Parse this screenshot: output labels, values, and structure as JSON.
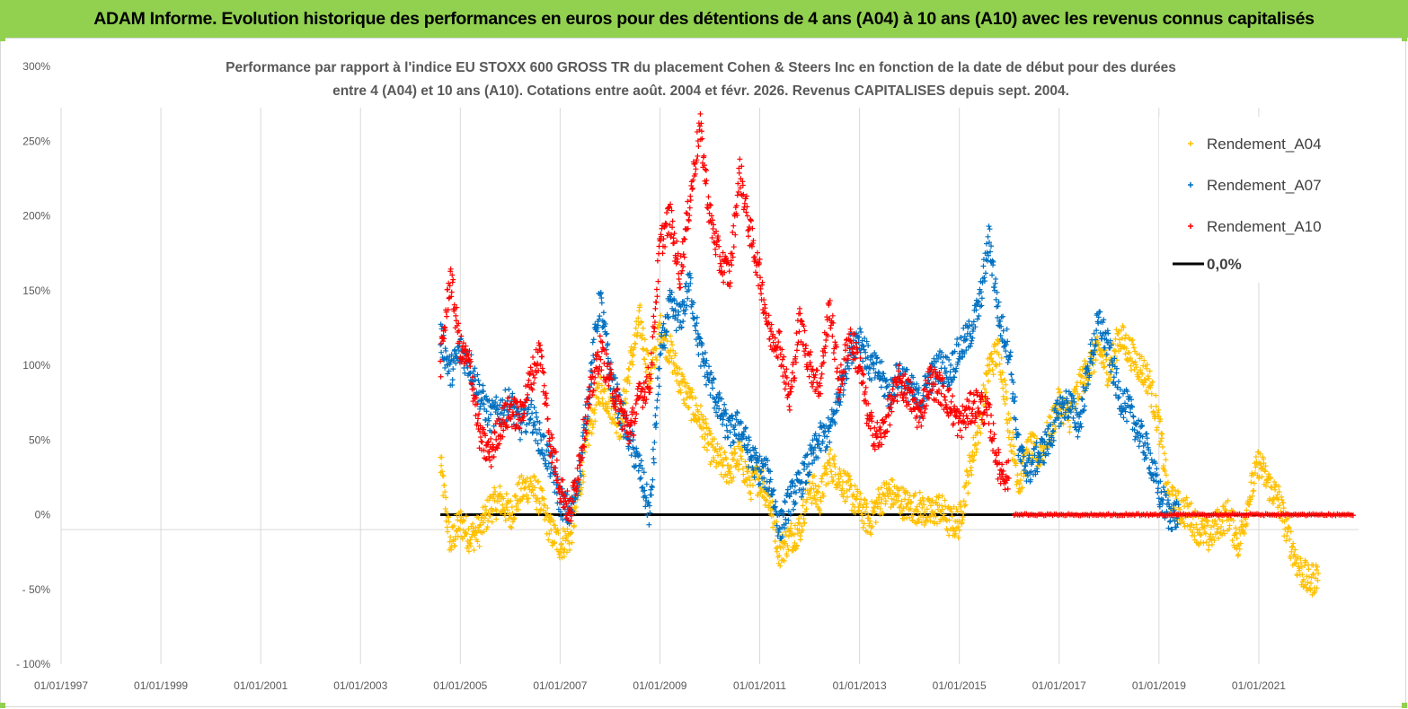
{
  "header": {
    "title": "ADAM Informe. Evolution historique des performances en euros pour des détentions de 4 ans (A04) à 10 ans (A10) avec les revenus connus capitalisés"
  },
  "chart_data": {
    "type": "scatter",
    "title_line1": "Performance par rapport à l'indice EU STOXX 600 GROSS TR  du placement Cohen & Steers Inc en fonction de la date de début pour des durées",
    "title_line2": "entre 4 (A04) et 10 ans (A10). Cotations entre août. 2004 et févr. 2026. Revenus CAPITALISES depuis sept. 2004.",
    "xlabel": "",
    "ylabel": "",
    "ylim": [
      -100,
      300
    ],
    "xlim": [
      "1997-01-01",
      "2022-12-31"
    ],
    "grid": "vertical gridlines at each x tick",
    "legend_position": "top-right",
    "y_ticks": [
      "300%",
      "250%",
      "200%",
      "150%",
      "100%",
      "50%",
      "0%",
      "- 50%",
      "- 100%"
    ],
    "x_ticks": [
      "01/01/1997",
      "01/01/1999",
      "01/01/2001",
      "01/01/2003",
      "01/01/2005",
      "01/01/2007",
      "01/01/2009",
      "01/01/2011",
      "01/01/2013",
      "01/01/2015",
      "01/01/2017",
      "01/01/2019",
      "01/01/2021"
    ],
    "series": [
      {
        "name": "Rendement_A04",
        "color": "#ffc000",
        "marker": "plus",
        "points": [
          [
            2004.6,
            35
          ],
          [
            2004.8,
            -20
          ],
          [
            2005.0,
            -5
          ],
          [
            2005.2,
            -15
          ],
          [
            2005.4,
            -10
          ],
          [
            2005.6,
            5
          ],
          [
            2005.8,
            10
          ],
          [
            2006.0,
            0
          ],
          [
            2006.2,
            15
          ],
          [
            2006.4,
            20
          ],
          [
            2006.6,
            10
          ],
          [
            2006.8,
            -10
          ],
          [
            2007.0,
            -20
          ],
          [
            2007.2,
            -15
          ],
          [
            2007.4,
            20
          ],
          [
            2007.6,
            60
          ],
          [
            2007.8,
            85
          ],
          [
            2008.0,
            75
          ],
          [
            2008.2,
            60
          ],
          [
            2008.4,
            100
          ],
          [
            2008.6,
            130
          ],
          [
            2008.8,
            90
          ],
          [
            2009.0,
            125
          ],
          [
            2009.2,
            110
          ],
          [
            2009.4,
            90
          ],
          [
            2009.6,
            75
          ],
          [
            2009.8,
            65
          ],
          [
            2010.0,
            45
          ],
          [
            2010.2,
            35
          ],
          [
            2010.4,
            30
          ],
          [
            2010.6,
            40
          ],
          [
            2010.8,
            20
          ],
          [
            2011.0,
            25
          ],
          [
            2011.2,
            10
          ],
          [
            2011.4,
            -25
          ],
          [
            2011.6,
            -15
          ],
          [
            2011.8,
            -10
          ],
          [
            2012.0,
            20
          ],
          [
            2012.2,
            10
          ],
          [
            2012.4,
            35
          ],
          [
            2012.6,
            25
          ],
          [
            2012.8,
            15
          ],
          [
            2013.0,
            5
          ],
          [
            2013.2,
            -5
          ],
          [
            2013.4,
            10
          ],
          [
            2013.6,
            15
          ],
          [
            2013.8,
            10
          ],
          [
            2014.0,
            5
          ],
          [
            2014.2,
            5
          ],
          [
            2014.4,
            0
          ],
          [
            2014.6,
            5
          ],
          [
            2014.8,
            -5
          ],
          [
            2015.0,
            -5
          ],
          [
            2015.2,
            30
          ],
          [
            2015.4,
            60
          ],
          [
            2015.6,
            100
          ],
          [
            2015.8,
            110
          ],
          [
            2016.0,
            60
          ],
          [
            2016.2,
            20
          ],
          [
            2016.4,
            45
          ],
          [
            2016.6,
            40
          ],
          [
            2016.8,
            55
          ],
          [
            2017.0,
            75
          ],
          [
            2017.2,
            65
          ],
          [
            2017.4,
            85
          ],
          [
            2017.6,
            100
          ],
          [
            2017.8,
            110
          ],
          [
            2018.0,
            95
          ],
          [
            2018.2,
            120
          ],
          [
            2018.4,
            110
          ],
          [
            2018.6,
            100
          ],
          [
            2018.8,
            90
          ],
          [
            2019.0,
            60
          ],
          [
            2019.2,
            10
          ],
          [
            2019.4,
            5
          ],
          [
            2019.6,
            0
          ],
          [
            2019.8,
            -10
          ],
          [
            2020.0,
            -15
          ],
          [
            2020.2,
            -5
          ],
          [
            2020.4,
            0
          ],
          [
            2020.6,
            -20
          ],
          [
            2020.8,
            10
          ],
          [
            2021.0,
            35
          ],
          [
            2021.2,
            20
          ],
          [
            2021.4,
            10
          ],
          [
            2021.6,
            -15
          ],
          [
            2021.8,
            -35
          ],
          [
            2022.0,
            -45
          ],
          [
            2022.2,
            -40
          ]
        ]
      },
      {
        "name": "Rendement_A07",
        "color": "#0070c0",
        "marker": "plus",
        "points": [
          [
            2004.6,
            120
          ],
          [
            2004.8,
            95
          ],
          [
            2005.0,
            110
          ],
          [
            2005.2,
            100
          ],
          [
            2005.4,
            80
          ],
          [
            2005.6,
            65
          ],
          [
            2005.8,
            70
          ],
          [
            2006.0,
            75
          ],
          [
            2006.2,
            60
          ],
          [
            2006.4,
            70
          ],
          [
            2006.6,
            50
          ],
          [
            2006.8,
            35
          ],
          [
            2007.0,
            10
          ],
          [
            2007.2,
            0
          ],
          [
            2007.4,
            30
          ],
          [
            2007.6,
            90
          ],
          [
            2007.8,
            145
          ],
          [
            2008.0,
            95
          ],
          [
            2008.2,
            70
          ],
          [
            2008.4,
            50
          ],
          [
            2008.6,
            30
          ],
          [
            2008.8,
            0
          ],
          [
            2009.0,
            105
          ],
          [
            2009.2,
            140
          ],
          [
            2009.4,
            130
          ],
          [
            2009.6,
            155
          ],
          [
            2009.8,
            110
          ],
          [
            2010.0,
            90
          ],
          [
            2010.2,
            70
          ],
          [
            2010.4,
            55
          ],
          [
            2010.6,
            60
          ],
          [
            2010.8,
            40
          ],
          [
            2011.0,
            30
          ],
          [
            2011.2,
            25
          ],
          [
            2011.4,
            -10
          ],
          [
            2011.6,
            10
          ],
          [
            2011.8,
            20
          ],
          [
            2012.0,
            35
          ],
          [
            2012.2,
            50
          ],
          [
            2012.4,
            55
          ],
          [
            2012.6,
            80
          ],
          [
            2012.8,
            110
          ],
          [
            2013.0,
            120
          ],
          [
            2013.2,
            100
          ],
          [
            2013.4,
            95
          ],
          [
            2013.6,
            80
          ],
          [
            2013.8,
            95
          ],
          [
            2014.0,
            85
          ],
          [
            2014.2,
            75
          ],
          [
            2014.4,
            90
          ],
          [
            2014.6,
            100
          ],
          [
            2014.8,
            95
          ],
          [
            2015.0,
            110
          ],
          [
            2015.2,
            120
          ],
          [
            2015.4,
            140
          ],
          [
            2015.6,
            185
          ],
          [
            2015.8,
            130
          ],
          [
            2016.0,
            110
          ],
          [
            2016.2,
            40
          ],
          [
            2016.4,
            30
          ],
          [
            2016.6,
            40
          ],
          [
            2016.8,
            50
          ],
          [
            2017.0,
            70
          ],
          [
            2017.2,
            75
          ],
          [
            2017.4,
            60
          ],
          [
            2017.6,
            100
          ],
          [
            2017.8,
            130
          ],
          [
            2018.0,
            110
          ],
          [
            2018.2,
            80
          ],
          [
            2018.4,
            70
          ],
          [
            2018.6,
            55
          ],
          [
            2018.8,
            40
          ],
          [
            2019.0,
            15
          ],
          [
            2019.2,
            0
          ],
          [
            2019.4,
            0
          ]
        ]
      },
      {
        "name": "Rendement_A10",
        "color": "#ff0000",
        "marker": "plus",
        "points": [
          [
            2004.6,
            100
          ],
          [
            2004.8,
            160
          ],
          [
            2005.0,
            110
          ],
          [
            2005.2,
            100
          ],
          [
            2005.4,
            50
          ],
          [
            2005.6,
            40
          ],
          [
            2005.8,
            60
          ],
          [
            2006.0,
            70
          ],
          [
            2006.2,
            65
          ],
          [
            2006.4,
            90
          ],
          [
            2006.6,
            110
          ],
          [
            2006.8,
            50
          ],
          [
            2007.0,
            20
          ],
          [
            2007.2,
            0
          ],
          [
            2007.4,
            40
          ],
          [
            2007.6,
            80
          ],
          [
            2007.8,
            110
          ],
          [
            2008.0,
            90
          ],
          [
            2008.2,
            70
          ],
          [
            2008.4,
            55
          ],
          [
            2008.6,
            80
          ],
          [
            2008.8,
            90
          ],
          [
            2009.0,
            180
          ],
          [
            2009.2,
            200
          ],
          [
            2009.4,
            160
          ],
          [
            2009.6,
            210
          ],
          [
            2009.8,
            260
          ],
          [
            2010.0,
            200
          ],
          [
            2010.2,
            170
          ],
          [
            2010.4,
            160
          ],
          [
            2010.6,
            230
          ],
          [
            2010.8,
            190
          ],
          [
            2011.0,
            160
          ],
          [
            2011.2,
            120
          ],
          [
            2011.4,
            115
          ],
          [
            2011.6,
            75
          ],
          [
            2011.8,
            130
          ],
          [
            2012.0,
            100
          ],
          [
            2012.2,
            85
          ],
          [
            2012.4,
            140
          ],
          [
            2012.6,
            85
          ],
          [
            2012.8,
            120
          ],
          [
            2013.0,
            100
          ],
          [
            2013.2,
            60
          ],
          [
            2013.4,
            50
          ],
          [
            2013.6,
            70
          ],
          [
            2013.8,
            90
          ],
          [
            2014.0,
            80
          ],
          [
            2014.2,
            65
          ],
          [
            2014.4,
            90
          ],
          [
            2014.6,
            85
          ],
          [
            2014.8,
            75
          ],
          [
            2015.0,
            60
          ],
          [
            2015.2,
            70
          ],
          [
            2015.4,
            75
          ],
          [
            2015.6,
            65
          ],
          [
            2015.8,
            30
          ],
          [
            2016.0,
            25
          ]
        ]
      }
    ],
    "reference_line": {
      "name": "0,0%",
      "color": "#000000",
      "y": 0,
      "x_range": [
        2004.6,
        2022.9
      ]
    },
    "zero_segment_A10": {
      "color": "#ff0000",
      "y": 0,
      "x_range": [
        2016.1,
        2022.9
      ]
    }
  }
}
